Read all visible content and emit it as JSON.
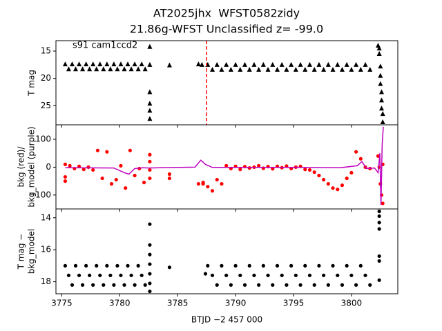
{
  "chart_data": [
    {
      "type": "scatter",
      "title": "AT2025jhx  WFST0582zidy",
      "subtitle": "21.86g-WFST Unclassified z= -99.0",
      "ylabel": [
        "T mag"
      ],
      "annotation": "s91 cam1ccd2",
      "xlim": [
        3774.5,
        3804
      ],
      "ylim": [
        28.5,
        13.1
      ],
      "yticks": [
        15,
        20,
        25
      ],
      "vline": {
        "x": 3787.5,
        "color": "#ff0000"
      },
      "series": [
        {
          "marker": "^",
          "color": "#000000",
          "x": [
            3775.3,
            3775.6,
            3775.9,
            3776.2,
            3776.5,
            3776.8,
            3777.1,
            3777.4,
            3777.7,
            3778.0,
            3778.3,
            3778.6,
            3778.9,
            3779.2,
            3779.5,
            3779.8,
            3780.1,
            3780.4,
            3780.7,
            3781.0,
            3781.3,
            3781.6,
            3781.9,
            3782.2,
            3782.6,
            3782.6,
            3782.6,
            3782.6,
            3782.6,
            3782.6,
            3784.3,
            3786.8,
            3787.1,
            3787.6,
            3788.0,
            3788.4,
            3788.8,
            3789.2,
            3789.6,
            3790.0,
            3790.4,
            3790.8,
            3791.2,
            3791.6,
            3792.0,
            3792.4,
            3792.8,
            3793.2,
            3793.6,
            3794.0,
            3794.4,
            3794.8,
            3795.2,
            3795.6,
            3796.0,
            3796.4,
            3796.8,
            3797.2,
            3797.6,
            3798.0,
            3798.4,
            3798.8,
            3799.2,
            3799.6,
            3800.0,
            3800.4,
            3800.8,
            3801.2,
            3801.6,
            3802.3,
            3802.4,
            3802.4,
            3802.5,
            3802.5,
            3802.5,
            3802.6,
            3802.6,
            3802.6,
            3802.7,
            3802.7
          ],
          "values": [
            17.4,
            18.3,
            17.4,
            18.3,
            17.4,
            18.3,
            17.4,
            18.3,
            17.4,
            18.3,
            17.4,
            18.3,
            17.4,
            18.3,
            17.4,
            18.3,
            17.4,
            18.3,
            17.4,
            18.3,
            17.4,
            18.3,
            17.4,
            18.3,
            14.2,
            17.5,
            22.5,
            24.6,
            25.9,
            27.4,
            17.6,
            17.4,
            17.5,
            17.5,
            18.4,
            17.5,
            18.4,
            17.5,
            18.4,
            17.5,
            18.4,
            17.5,
            18.4,
            17.5,
            18.4,
            17.5,
            18.4,
            17.5,
            18.4,
            17.5,
            18.4,
            17.5,
            18.4,
            17.5,
            18.4,
            17.5,
            18.4,
            17.5,
            18.4,
            17.5,
            18.4,
            17.5,
            18.4,
            17.5,
            18.4,
            17.5,
            18.4,
            17.5,
            18.4,
            14.0,
            14.5,
            15.5,
            17.8,
            19.5,
            21.0,
            22.5,
            24.0,
            25.5,
            26.5,
            28.0
          ]
        }
      ]
    },
    {
      "type": "scatter",
      "ylabel": [
        "bkg (red)/",
        "bkg_model (purple)"
      ],
      "xlim": [
        3774.5,
        3804
      ],
      "ylim": [
        -150,
        152
      ],
      "yticks": [
        {
          "value": -100,
          "label": "−100"
        },
        0,
        100
      ],
      "series": [
        {
          "marker": "o",
          "color": "#ff0000",
          "x": [
            3775.3,
            3775.3,
            3775.3,
            3775.7,
            3776.1,
            3776.5,
            3776.9,
            3777.3,
            3777.7,
            3778.1,
            3778.5,
            3778.9,
            3779.3,
            3779.7,
            3780.1,
            3780.5,
            3780.9,
            3781.3,
            3781.7,
            3782.1,
            3782.6,
            3782.6,
            3782.6,
            3782.6,
            3784.3,
            3784.3,
            3786.8,
            3787.2,
            3787.2,
            3787.6,
            3788.0,
            3788.4,
            3788.8,
            3789.2,
            3789.6,
            3790.0,
            3790.4,
            3790.8,
            3791.2,
            3791.6,
            3792.0,
            3792.4,
            3792.8,
            3793.2,
            3793.6,
            3794.0,
            3794.4,
            3794.8,
            3795.2,
            3795.6,
            3796.0,
            3796.4,
            3796.8,
            3797.2,
            3797.6,
            3798.0,
            3798.4,
            3798.8,
            3799.2,
            3799.6,
            3800.0,
            3800.4,
            3800.8,
            3801.2,
            3801.6,
            3802.3,
            3802.4,
            3802.5,
            3802.6,
            3802.7,
            3802.7
          ],
          "values": [
            -50,
            10,
            -35,
            5,
            -5,
            3,
            -8,
            0,
            -10,
            60,
            -40,
            55,
            -60,
            -45,
            5,
            -75,
            60,
            -30,
            -5,
            -55,
            45,
            20,
            -10,
            -40,
            -25,
            -40,
            -60,
            -55,
            -60,
            -70,
            -85,
            -45,
            -60,
            5,
            -5,
            3,
            -8,
            2,
            -3,
            0,
            5,
            -4,
            2,
            -6,
            3,
            -2,
            4,
            -5,
            0,
            3,
            -8,
            -10,
            -18,
            -30,
            -45,
            -60,
            -75,
            -80,
            -65,
            -40,
            -20,
            55,
            30,
            0,
            -5,
            40,
            0,
            -60,
            -100,
            -130,
            10
          ]
        },
        {
          "marker": null,
          "color": "#bf00bf",
          "x": [
            3775.3,
            3779.5,
            3780.4,
            3780.8,
            3781.3,
            3782.0,
            3782.5,
            3783.5,
            3786.5,
            3787.0,
            3787.4,
            3788.0,
            3795.0,
            3799.0,
            3800.5,
            3800.9,
            3801.3,
            3802.0,
            3802.3,
            3802.45,
            3802.55,
            3802.65,
            3802.75
          ],
          "values": [
            -2,
            -3,
            -20,
            -25,
            -5,
            -2,
            -3,
            -2,
            0,
            25,
            10,
            -1,
            -1,
            -2,
            5,
            20,
            -5,
            -3,
            -20,
            50,
            -135,
            80,
            145
          ]
        }
      ]
    },
    {
      "type": "scatter",
      "ylabel": [
        "T mag −",
        "bkg_model"
      ],
      "xlabel": "BTJD −2 457 000",
      "xlim": [
        3774.5,
        3804
      ],
      "ylim": [
        18.75,
        13.45
      ],
      "yticks": [
        14,
        16,
        18
      ],
      "xticks": [
        3775,
        3780,
        3785,
        3790,
        3795,
        3800
      ],
      "series": [
        {
          "marker": "o",
          "color": "#000000",
          "x": [
            3775.3,
            3775.6,
            3775.9,
            3776.2,
            3776.5,
            3776.8,
            3777.1,
            3777.4,
            3777.7,
            3778.0,
            3778.3,
            3778.6,
            3778.9,
            3779.2,
            3779.5,
            3779.8,
            3780.1,
            3780.4,
            3780.7,
            3781.0,
            3781.3,
            3781.6,
            3781.9,
            3782.2,
            3782.6,
            3782.6,
            3782.6,
            3782.6,
            3782.6,
            3782.6,
            3782.6,
            3784.3,
            3787.4,
            3787.6,
            3788.0,
            3788.4,
            3788.8,
            3789.2,
            3789.6,
            3790.0,
            3790.4,
            3790.8,
            3791.2,
            3791.6,
            3792.0,
            3792.4,
            3792.8,
            3793.2,
            3793.6,
            3794.0,
            3794.4,
            3794.8,
            3795.2,
            3795.6,
            3796.0,
            3796.4,
            3796.8,
            3797.2,
            3797.6,
            3798.0,
            3798.4,
            3798.8,
            3799.2,
            3799.6,
            3800.0,
            3800.4,
            3800.8,
            3801.2,
            3801.6,
            3802.4,
            3802.4,
            3802.4,
            3802.4,
            3802.4,
            3802.4,
            3802.4
          ],
          "values": [
            17.0,
            17.6,
            18.2,
            17.0,
            17.6,
            18.2,
            17.0,
            17.6,
            18.2,
            17.0,
            17.6,
            18.2,
            17.0,
            17.6,
            18.2,
            17.0,
            17.6,
            18.2,
            17.0,
            17.6,
            18.2,
            17.0,
            17.6,
            18.2,
            14.4,
            15.7,
            16.3,
            16.9,
            17.5,
            18.1,
            18.6,
            17.1,
            17.5,
            17.0,
            17.6,
            18.2,
            17.0,
            17.6,
            18.2,
            17.0,
            17.6,
            18.2,
            17.0,
            17.6,
            18.2,
            17.0,
            17.6,
            18.2,
            17.0,
            17.6,
            18.2,
            17.0,
            17.6,
            18.2,
            17.0,
            17.6,
            18.2,
            17.0,
            17.6,
            18.2,
            17.0,
            17.6,
            18.2,
            17.0,
            17.6,
            18.2,
            17.0,
            17.6,
            18.2,
            13.6,
            13.9,
            14.3,
            14.7,
            16.4,
            16.7,
            17.9
          ]
        }
      ]
    }
  ]
}
